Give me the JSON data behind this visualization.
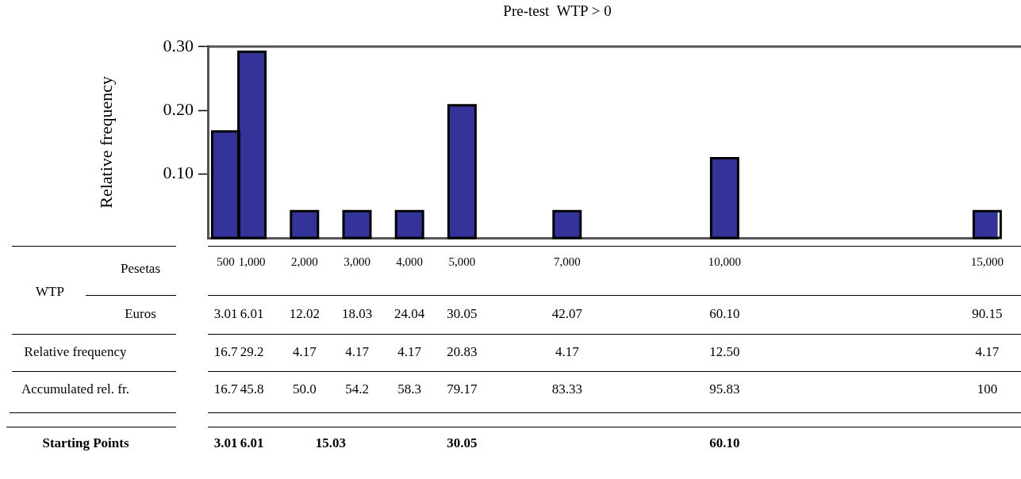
{
  "chart_data": {
    "type": "bar",
    "title": "Pre-test  WTP > 0",
    "ylabel": "Relative frequency",
    "xlabel": "Pesetas",
    "x": [
      500,
      1000,
      2000,
      3000,
      4000,
      5000,
      7000,
      10000,
      15000
    ],
    "values": [
      0.167,
      0.292,
      0.042,
      0.042,
      0.042,
      0.208,
      0.042,
      0.125,
      0.042
    ],
    "color": "#333399",
    "xlim": [
      160,
      15200
    ],
    "xticks": [
      {
        "value": 500,
        "label": "500"
      },
      {
        "value": 1000,
        "label": "1,000"
      },
      {
        "value": 2000,
        "label": "2,000"
      },
      {
        "value": 3000,
        "label": "3,000"
      },
      {
        "value": 4000,
        "label": "4,000"
      },
      {
        "value": 5000,
        "label": "5,000"
      },
      {
        "value": 7000,
        "label": "7,000"
      },
      {
        "value": 10000,
        "label": "10,000"
      },
      {
        "value": 15000,
        "label": "15,000"
      }
    ],
    "ylim": [
      0,
      0.3
    ],
    "yticks": [
      {
        "value": 0.1,
        "label": "0.10"
      },
      {
        "value": 0.2,
        "label": "0.20"
      },
      {
        "value": 0.3,
        "label": "0.30"
      }
    ],
    "grid": false,
    "annotations": [
      "WTP",
      "Euros",
      "3.01",
      "6.01",
      "12.02",
      "18.03",
      "24.04",
      "30.05",
      "42.07",
      "60.10",
      "90.15",
      "Relative frequency",
      "16.7",
      "29.2",
      "4.17",
      "4.17",
      "4.17",
      "20.83",
      "4.17",
      "12.50",
      "4.17",
      "Accumulated rel. fr.",
      "16.7",
      "45.8",
      "50.0",
      "54.2",
      "58.3",
      "79.17",
      "83.33",
      "95.83",
      "100",
      "Starting Points",
      "3.01",
      "6.01",
      "15.03",
      "30.05",
      "60.10"
    ]
  }
}
